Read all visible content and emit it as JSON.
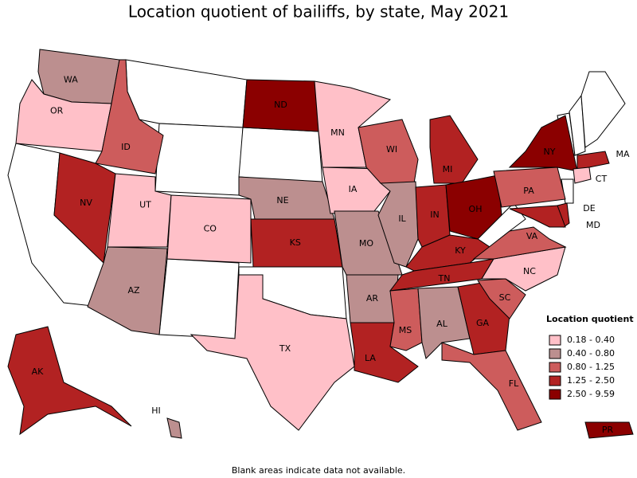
{
  "title": "Location quotient of bailiffs, by state, May 2021",
  "footnote": "Blank areas indicate data not available.",
  "legend": {
    "title": "Location quotient",
    "items": [
      {
        "label": "0.18 - 0.40",
        "color": "#ffc0c8"
      },
      {
        "label": "0.40 - 0.80",
        "color": "#bc8f8f"
      },
      {
        "label": "0.80 - 1.25",
        "color": "#cd5c5c"
      },
      {
        "label": "1.25 - 2.50",
        "color": "#b22222"
      },
      {
        "label": "2.50 - 9.59",
        "color": "#8b0000"
      }
    ]
  },
  "states": [
    {
      "label": "WA",
      "class": 1
    },
    {
      "label": "OR",
      "class": 0
    },
    {
      "label": "ID",
      "class": 2
    },
    {
      "label": "NV",
      "class": 3
    },
    {
      "label": "UT",
      "class": 0
    },
    {
      "label": "AZ",
      "class": 1
    },
    {
      "label": "CO",
      "class": 0
    },
    {
      "label": "ND",
      "class": 4
    },
    {
      "label": "MN",
      "class": 0
    },
    {
      "label": "NE",
      "class": 1
    },
    {
      "label": "KS",
      "class": 3
    },
    {
      "label": "IA",
      "class": 0
    },
    {
      "label": "MO",
      "class": 1
    },
    {
      "label": "TX",
      "class": 0
    },
    {
      "label": "AR",
      "class": 1
    },
    {
      "label": "LA",
      "class": 3
    },
    {
      "label": "WI",
      "class": 2
    },
    {
      "label": "IL",
      "class": 1
    },
    {
      "label": "MI",
      "class": 3
    },
    {
      "label": "IN",
      "class": 3
    },
    {
      "label": "OH",
      "class": 4
    },
    {
      "label": "KY",
      "class": 3
    },
    {
      "label": "TN",
      "class": 3
    },
    {
      "label": "MS",
      "class": 2
    },
    {
      "label": "AL",
      "class": 1
    },
    {
      "label": "GA",
      "class": 3
    },
    {
      "label": "FL",
      "class": 2
    },
    {
      "label": "SC",
      "class": 2
    },
    {
      "label": "NC",
      "class": 0
    },
    {
      "label": "VA",
      "class": 2
    },
    {
      "label": "PA",
      "class": 2
    },
    {
      "label": "NY",
      "class": 4
    },
    {
      "label": "MA",
      "class": 3
    },
    {
      "label": "CT",
      "class": 0
    },
    {
      "label": "DE",
      "class": 3
    },
    {
      "label": "MD",
      "class": 3
    },
    {
      "label": "AK",
      "class": 3
    },
    {
      "label": "HI",
      "class": 1
    },
    {
      "label": "PR",
      "class": 4
    }
  ]
}
